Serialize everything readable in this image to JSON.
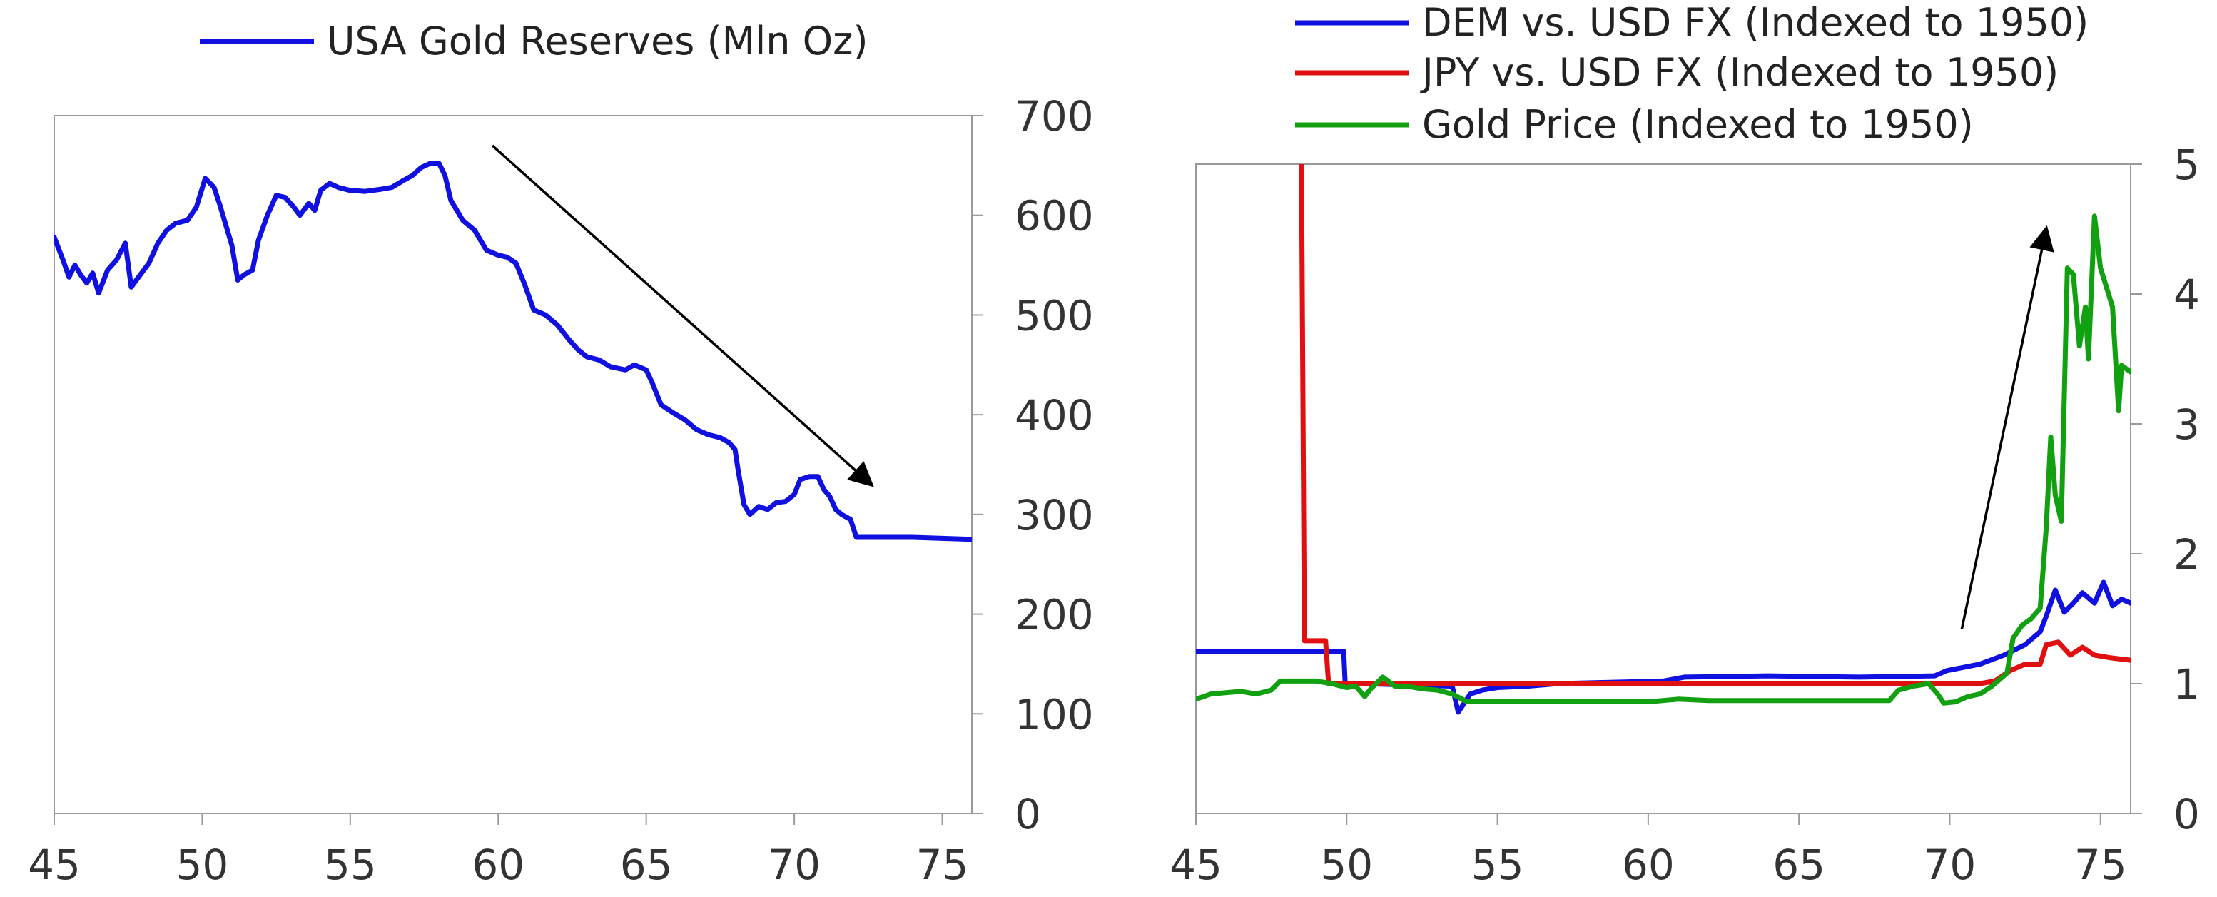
{
  "chart_data": [
    {
      "type": "line",
      "title": "",
      "xlabel": "",
      "ylabel": "",
      "xlim": [
        45,
        76
      ],
      "ylim": [
        0,
        700
      ],
      "x_ticks": [
        "45",
        "50",
        "55",
        "60",
        "65",
        "70",
        "75"
      ],
      "y_ticks": [
        "0",
        "100",
        "200",
        "300",
        "400",
        "500",
        "600",
        "700"
      ],
      "y_axis_side": "right",
      "legend_position": "top",
      "grid": false,
      "series": [
        {
          "name": "USA Gold Reserves (Mln Oz)",
          "color": "#1010e0",
          "points": [
            [
              45.0,
              578
            ],
            [
              45.3,
              555
            ],
            [
              45.5,
              538
            ],
            [
              45.7,
              550
            ],
            [
              45.9,
              540
            ],
            [
              46.1,
              532
            ],
            [
              46.3,
              542
            ],
            [
              46.5,
              522
            ],
            [
              46.8,
              545
            ],
            [
              47.1,
              555
            ],
            [
              47.4,
              572
            ],
            [
              47.6,
              528
            ],
            [
              47.9,
              540
            ],
            [
              48.2,
              552
            ],
            [
              48.5,
              572
            ],
            [
              48.8,
              585
            ],
            [
              49.1,
              592
            ],
            [
              49.5,
              595
            ],
            [
              49.8,
              608
            ],
            [
              50.1,
              637
            ],
            [
              50.4,
              628
            ],
            [
              50.6,
              610
            ],
            [
              50.8,
              590
            ],
            [
              51.0,
              570
            ],
            [
              51.2,
              535
            ],
            [
              51.4,
              540
            ],
            [
              51.7,
              545
            ],
            [
              51.9,
              575
            ],
            [
              52.2,
              600
            ],
            [
              52.5,
              620
            ],
            [
              52.8,
              618
            ],
            [
              53.1,
              608
            ],
            [
              53.3,
              600
            ],
            [
              53.6,
              612
            ],
            [
              53.8,
              605
            ],
            [
              54.0,
              625
            ],
            [
              54.3,
              632
            ],
            [
              54.6,
              628
            ],
            [
              55.0,
              625
            ],
            [
              55.5,
              624
            ],
            [
              56.0,
              626
            ],
            [
              56.4,
              628
            ],
            [
              56.8,
              635
            ],
            [
              57.1,
              640
            ],
            [
              57.4,
              648
            ],
            [
              57.7,
              652
            ],
            [
              58.0,
              652
            ],
            [
              58.2,
              640
            ],
            [
              58.4,
              615
            ],
            [
              58.8,
              595
            ],
            [
              59.2,
              585
            ],
            [
              59.6,
              565
            ],
            [
              60.0,
              560
            ],
            [
              60.3,
              558
            ],
            [
              60.6,
              552
            ],
            [
              60.9,
              530
            ],
            [
              61.2,
              505
            ],
            [
              61.6,
              500
            ],
            [
              62.0,
              490
            ],
            [
              62.4,
              475
            ],
            [
              62.7,
              465
            ],
            [
              63.0,
              458
            ],
            [
              63.4,
              455
            ],
            [
              63.8,
              448
            ],
            [
              64.3,
              445
            ],
            [
              64.6,
              450
            ],
            [
              65.0,
              445
            ],
            [
              65.2,
              432
            ],
            [
              65.5,
              410
            ],
            [
              65.9,
              402
            ],
            [
              66.3,
              395
            ],
            [
              66.7,
              385
            ],
            [
              67.1,
              380
            ],
            [
              67.5,
              377
            ],
            [
              67.8,
              372
            ],
            [
              68.0,
              365
            ],
            [
              68.1,
              345
            ],
            [
              68.3,
              310
            ],
            [
              68.5,
              300
            ],
            [
              68.8,
              308
            ],
            [
              69.1,
              305
            ],
            [
              69.4,
              312
            ],
            [
              69.7,
              313
            ],
            [
              70.0,
              320
            ],
            [
              70.2,
              335
            ],
            [
              70.5,
              338
            ],
            [
              70.8,
              338
            ],
            [
              71.0,
              325
            ],
            [
              71.2,
              318
            ],
            [
              71.4,
              305
            ],
            [
              71.6,
              300
            ],
            [
              71.9,
              295
            ],
            [
              72.1,
              277
            ],
            [
              73.0,
              277
            ],
            [
              74.0,
              277
            ],
            [
              75.0,
              276
            ],
            [
              76.0,
              275
            ]
          ]
        }
      ],
      "annotations": [
        {
          "type": "arrow",
          "from": [
            59.8,
            670
          ],
          "to": [
            72.6,
            330
          ],
          "color": "#000000"
        }
      ]
    },
    {
      "type": "line",
      "title": "",
      "xlabel": "",
      "ylabel": "",
      "xlim": [
        45,
        76
      ],
      "ylim": [
        0,
        5
      ],
      "x_ticks": [
        "45",
        "50",
        "55",
        "60",
        "65",
        "70",
        "75"
      ],
      "y_ticks": [
        "0",
        "1",
        "2",
        "3",
        "4",
        "5"
      ],
      "y_axis_side": "right",
      "legend_position": "top",
      "grid": false,
      "series": [
        {
          "name": "DEM vs. USD FX (Indexed to 1950)",
          "color": "#1010e0",
          "points": [
            [
              45.0,
              1.25
            ],
            [
              49.9,
              1.25
            ],
            [
              49.95,
              1.0
            ],
            [
              50.5,
              1.0
            ],
            [
              53.5,
              0.98
            ],
            [
              53.7,
              0.78
            ],
            [
              53.9,
              0.85
            ],
            [
              54.1,
              0.92
            ],
            [
              54.5,
              0.95
            ],
            [
              55.0,
              0.97
            ],
            [
              56.0,
              0.98
            ],
            [
              57.0,
              1.0
            ],
            [
              60.5,
              1.02
            ],
            [
              61.2,
              1.05
            ],
            [
              64.0,
              1.06
            ],
            [
              67.0,
              1.05
            ],
            [
              69.5,
              1.06
            ],
            [
              69.9,
              1.1
            ],
            [
              71.0,
              1.15
            ],
            [
              71.8,
              1.22
            ],
            [
              72.5,
              1.3
            ],
            [
              73.0,
              1.4
            ],
            [
              73.2,
              1.52
            ],
            [
              73.5,
              1.72
            ],
            [
              73.8,
              1.55
            ],
            [
              74.1,
              1.62
            ],
            [
              74.4,
              1.7
            ],
            [
              74.8,
              1.62
            ],
            [
              75.1,
              1.78
            ],
            [
              75.4,
              1.6
            ],
            [
              75.7,
              1.65
            ],
            [
              76.0,
              1.62
            ]
          ]
        },
        {
          "name": "JPY vs. USD FX (Indexed to 1950)",
          "color": "#e01010",
          "points": [
            [
              48.5,
              5.0
            ],
            [
              48.6,
              1.33
            ],
            [
              49.3,
              1.33
            ],
            [
              49.4,
              1.0
            ],
            [
              50.0,
              1.0
            ],
            [
              55.0,
              1.0
            ],
            [
              60.0,
              1.0
            ],
            [
              65.0,
              1.0
            ],
            [
              70.0,
              1.0
            ],
            [
              71.0,
              1.0
            ],
            [
              71.5,
              1.02
            ],
            [
              72.0,
              1.1
            ],
            [
              72.5,
              1.15
            ],
            [
              73.0,
              1.15
            ],
            [
              73.2,
              1.3
            ],
            [
              73.6,
              1.32
            ],
            [
              74.0,
              1.22
            ],
            [
              74.4,
              1.28
            ],
            [
              74.8,
              1.22
            ],
            [
              75.3,
              1.2
            ],
            [
              76.0,
              1.18
            ]
          ]
        },
        {
          "name": "Gold Price (Indexed to 1950)",
          "color": "#10a010",
          "points": [
            [
              45.0,
              0.88
            ],
            [
              45.5,
              0.92
            ],
            [
              46.0,
              0.93
            ],
            [
              46.5,
              0.94
            ],
            [
              47.0,
              0.92
            ],
            [
              47.5,
              0.95
            ],
            [
              47.8,
              1.02
            ],
            [
              48.5,
              1.02
            ],
            [
              49.0,
              1.02
            ],
            [
              49.5,
              1.0
            ],
            [
              50.0,
              0.97
            ],
            [
              50.3,
              0.98
            ],
            [
              50.6,
              0.9
            ],
            [
              50.8,
              0.96
            ],
            [
              51.2,
              1.05
            ],
            [
              51.6,
              0.98
            ],
            [
              52.0,
              0.98
            ],
            [
              52.5,
              0.96
            ],
            [
              53.0,
              0.95
            ],
            [
              53.5,
              0.92
            ],
            [
              54.0,
              0.86
            ],
            [
              55.0,
              0.86
            ],
            [
              57.0,
              0.86
            ],
            [
              60.0,
              0.86
            ],
            [
              61.0,
              0.88
            ],
            [
              62.0,
              0.87
            ],
            [
              65.0,
              0.87
            ],
            [
              68.0,
              0.87
            ],
            [
              68.3,
              0.95
            ],
            [
              68.8,
              0.98
            ],
            [
              69.3,
              1.0
            ],
            [
              69.6,
              0.92
            ],
            [
              69.8,
              0.85
            ],
            [
              70.2,
              0.86
            ],
            [
              70.6,
              0.9
            ],
            [
              71.0,
              0.92
            ],
            [
              71.4,
              0.98
            ],
            [
              71.9,
              1.08
            ],
            [
              72.1,
              1.35
            ],
            [
              72.4,
              1.45
            ],
            [
              72.7,
              1.5
            ],
            [
              73.0,
              1.58
            ],
            [
              73.2,
              2.2
            ],
            [
              73.35,
              2.9
            ],
            [
              73.5,
              2.45
            ],
            [
              73.7,
              2.25
            ],
            [
              73.9,
              4.2
            ],
            [
              74.1,
              4.15
            ],
            [
              74.3,
              3.6
            ],
            [
              74.5,
              3.9
            ],
            [
              74.6,
              3.5
            ],
            [
              74.8,
              4.6
            ],
            [
              75.0,
              4.2
            ],
            [
              75.2,
              4.05
            ],
            [
              75.4,
              3.9
            ],
            [
              75.6,
              3.1
            ],
            [
              75.7,
              3.45
            ],
            [
              76.0,
              3.4
            ]
          ]
        }
      ],
      "annotations": [
        {
          "type": "arrow",
          "from": [
            70.4,
            1.42
          ],
          "to": [
            73.2,
            4.5
          ],
          "color": "#000000"
        }
      ]
    }
  ]
}
